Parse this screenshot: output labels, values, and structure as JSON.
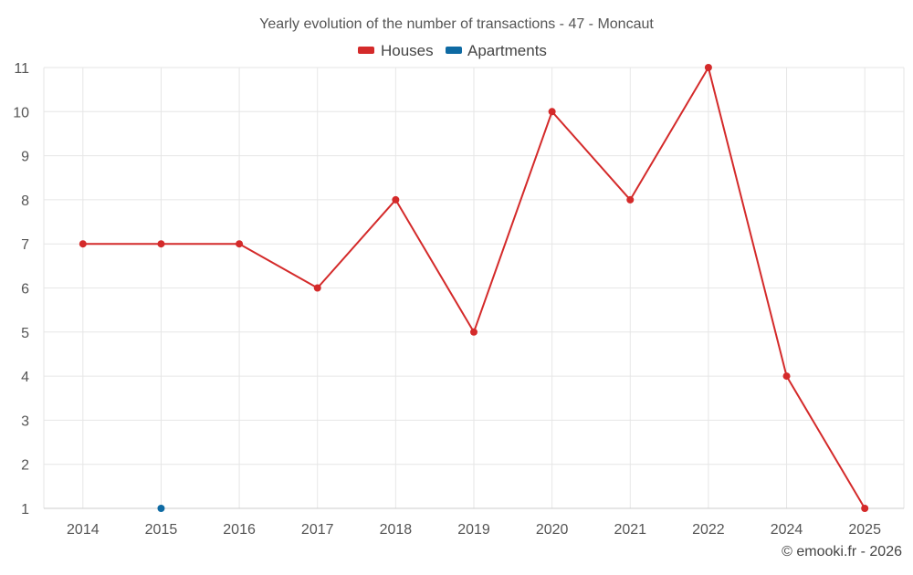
{
  "chart_data": {
    "type": "line",
    "title": "Yearly evolution of the number of transactions - 47 - Moncaut",
    "categories": [
      "2014",
      "2015",
      "2016",
      "2017",
      "2018",
      "2019",
      "2020",
      "2021",
      "2022",
      "2024",
      "2025"
    ],
    "series": [
      {
        "name": "Houses",
        "color": "#d42a2a",
        "values": [
          7,
          7,
          7,
          6,
          8,
          5,
          10,
          8,
          11,
          4,
          1
        ]
      },
      {
        "name": "Apartments",
        "color": "#0e6aa3",
        "values": [
          null,
          1,
          null,
          null,
          null,
          null,
          null,
          null,
          null,
          null,
          null
        ]
      }
    ],
    "ylim": [
      1,
      11
    ],
    "yticks": [
      "1",
      "2",
      "3",
      "4",
      "5",
      "6",
      "7",
      "8",
      "9",
      "10",
      "11"
    ],
    "grid": true,
    "legend_position": "top-center"
  },
  "credit": "© emooki.fr - 2026"
}
